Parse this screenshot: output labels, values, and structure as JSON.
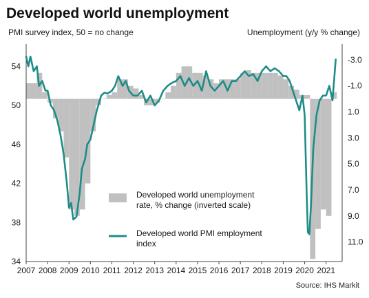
{
  "chart_data": {
    "type": "area+line",
    "title": "Developed world unemployment",
    "left_axis_label": "PMI survey index, 50 = no change",
    "right_axis_label": "Unemployment  (y/y % change)",
    "source": "Source: IHS Markit",
    "x_ticks": [
      "2007",
      "2008",
      "2009",
      "2010",
      "2011",
      "2012",
      "2013",
      "2014",
      "2015",
      "2016",
      "2017",
      "2018",
      "2019",
      "2020",
      "2021"
    ],
    "left_axis": {
      "min": 34,
      "max": 56,
      "ticks": [
        "54",
        "50",
        "46",
        "42",
        "38",
        "34"
      ]
    },
    "right_axis": {
      "min": 12.5,
      "max": -4,
      "inverted": true,
      "ticks": [
        "-3.0",
        "-1.0",
        "1.0",
        "3.0",
        "5.0",
        "7.0",
        "9.0",
        "11.0"
      ]
    },
    "colors": {
      "bars": "#c0c0c0",
      "line": "#1e8c87"
    },
    "series": [
      {
        "name": "Developed world unemployment rate, % change (inverted scale)",
        "axis": "right",
        "kind": "area",
        "x": [
          2007.0,
          2007.5,
          2007.75,
          2008.0,
          2008.25,
          2008.5,
          2008.75,
          2009.0,
          2009.25,
          2009.5,
          2009.75,
          2010.0,
          2010.25,
          2010.5,
          2010.75,
          2011.0,
          2011.25,
          2011.5,
          2011.75,
          2012.0,
          2012.25,
          2012.5,
          2012.75,
          2013.0,
          2013.25,
          2013.5,
          2013.75,
          2014.0,
          2014.25,
          2014.5,
          2014.75,
          2015.0,
          2015.25,
          2015.5,
          2015.75,
          2016.0,
          2016.25,
          2016.5,
          2016.75,
          2017.0,
          2017.25,
          2017.5,
          2017.75,
          2018.0,
          2018.25,
          2018.5,
          2018.75,
          2019.0,
          2019.25,
          2019.5,
          2019.75,
          2020.0,
          2020.25,
          2020.5,
          2020.75,
          2021.0,
          2021.25
        ],
        "values": [
          -1.2,
          -2.0,
          -0.5,
          0.3,
          1.5,
          2.5,
          4.5,
          8.5,
          9.0,
          8.5,
          6.5,
          2.5,
          0.5,
          0.0,
          -0.3,
          -0.5,
          -1.5,
          -1.5,
          -1.0,
          -0.8,
          -0.3,
          0.5,
          0.5,
          0.3,
          0.0,
          -0.5,
          -1.0,
          -2.0,
          -2.5,
          -2.5,
          -2.0,
          -2.0,
          -1.8,
          -1.5,
          -1.2,
          -1.5,
          -1.5,
          -1.5,
          -1.5,
          -2.0,
          -2.2,
          -2.0,
          -2.0,
          -2.0,
          -2.0,
          -2.0,
          -1.8,
          -1.5,
          -1.0,
          -0.7,
          -0.3,
          -0.3,
          12.3,
          10.0,
          8.5,
          9.0,
          -0.5
        ]
      },
      {
        "name": "Developed world PMI employment index",
        "axis": "left",
        "kind": "line",
        "x": [
          2007.0,
          2007.1,
          2007.2,
          2007.35,
          2007.5,
          2007.6,
          2007.75,
          2007.9,
          2008.0,
          2008.15,
          2008.3,
          2008.45,
          2008.6,
          2008.75,
          2008.9,
          2009.0,
          2009.1,
          2009.2,
          2009.35,
          2009.5,
          2009.6,
          2009.75,
          2009.85,
          2010.0,
          2010.15,
          2010.3,
          2010.5,
          2010.65,
          2010.8,
          2011.0,
          2011.15,
          2011.3,
          2011.5,
          2011.65,
          2011.8,
          2012.0,
          2012.2,
          2012.4,
          2012.6,
          2012.8,
          2013.0,
          2013.2,
          2013.4,
          2013.6,
          2013.8,
          2014.0,
          2014.2,
          2014.4,
          2014.6,
          2014.8,
          2015.0,
          2015.2,
          2015.4,
          2015.6,
          2015.8,
          2016.0,
          2016.2,
          2016.4,
          2016.6,
          2016.8,
          2017.0,
          2017.2,
          2017.4,
          2017.6,
          2017.8,
          2018.0,
          2018.2,
          2018.4,
          2018.6,
          2018.8,
          2019.0,
          2019.15,
          2019.3,
          2019.45,
          2019.6,
          2019.75,
          2019.9,
          2020.0,
          2020.1,
          2020.15,
          2020.22,
          2020.3,
          2020.4,
          2020.55,
          2020.7,
          2020.85,
          2021.0,
          2021.15,
          2021.3,
          2021.45
        ],
        "values": [
          55.0,
          54.0,
          55.0,
          53.5,
          54.0,
          52.0,
          52.5,
          51.5,
          51.5,
          50.0,
          49.5,
          48.5,
          47.0,
          45.0,
          42.0,
          39.5,
          40.0,
          38.3,
          38.6,
          41.0,
          43.5,
          44.5,
          46.0,
          46.5,
          48.0,
          49.5,
          51.0,
          51.3,
          51.2,
          51.5,
          52.0,
          53.0,
          52.0,
          52.5,
          51.5,
          51.0,
          51.0,
          51.5,
          50.3,
          51.0,
          50.0,
          50.5,
          51.5,
          52.0,
          52.3,
          52.5,
          53.0,
          52.0,
          52.8,
          52.0,
          52.5,
          51.5,
          53.5,
          52.0,
          51.5,
          52.0,
          52.5,
          51.5,
          52.5,
          52.5,
          53.0,
          53.5,
          53.0,
          53.2,
          52.5,
          53.5,
          54.0,
          53.5,
          53.8,
          53.5,
          53.0,
          53.0,
          52.5,
          51.5,
          50.5,
          49.5,
          51.0,
          49.0,
          40.5,
          37.0,
          36.8,
          40.0,
          45.5,
          49.0,
          50.5,
          51.0,
          51.0,
          52.0,
          50.5,
          54.7
        ]
      }
    ]
  }
}
